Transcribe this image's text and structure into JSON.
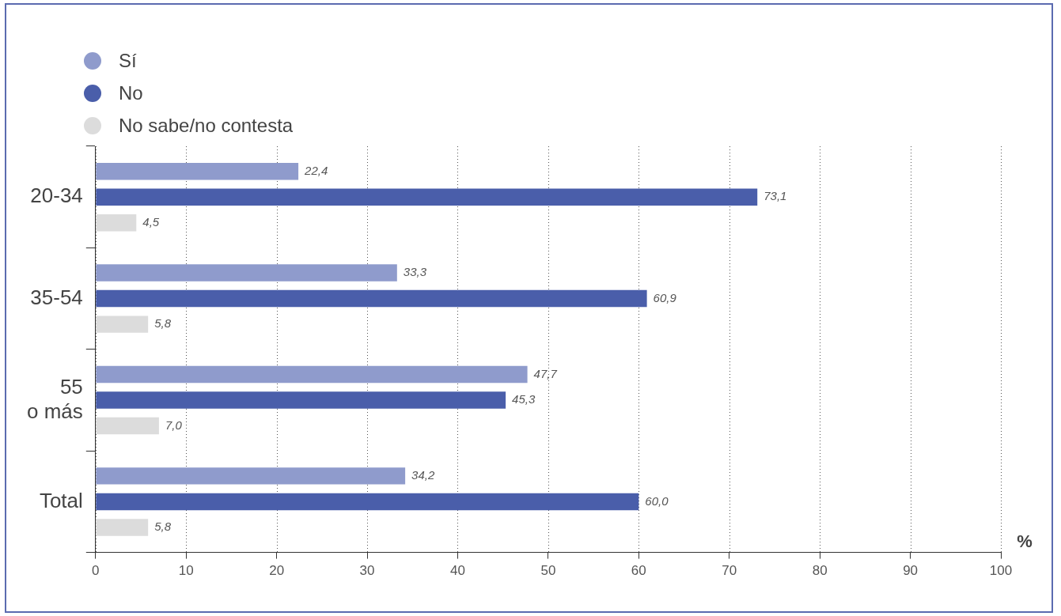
{
  "chart_data": {
    "type": "bar",
    "orientation": "horizontal",
    "xlabel": "%",
    "categories": [
      "20-34",
      "35-54",
      "55 o más",
      "Total"
    ],
    "series": [
      {
        "name": "Sí",
        "color": "#8f9bcc",
        "values": [
          22.4,
          33.3,
          47.7,
          34.2
        ],
        "value_labels": [
          "22,4",
          "33,3",
          "47,7",
          "34,2"
        ]
      },
      {
        "name": "No",
        "color": "#4a5eaa",
        "values": [
          73.1,
          60.9,
          45.3,
          60.0
        ],
        "value_labels": [
          "73,1",
          "60,9",
          "45,3",
          "60,0"
        ]
      },
      {
        "name": "No sabe/no contesta",
        "color": "#dcdcdc",
        "values": [
          4.5,
          5.8,
          7.0,
          5.8
        ],
        "value_labels": [
          "4,5",
          "5,8",
          "7,0",
          "5,8"
        ]
      }
    ],
    "xlim": [
      0,
      100
    ],
    "xticks": [
      0,
      10,
      20,
      30,
      40,
      50,
      60,
      70,
      80,
      90,
      100
    ],
    "grid": "x",
    "legend": "top left"
  }
}
